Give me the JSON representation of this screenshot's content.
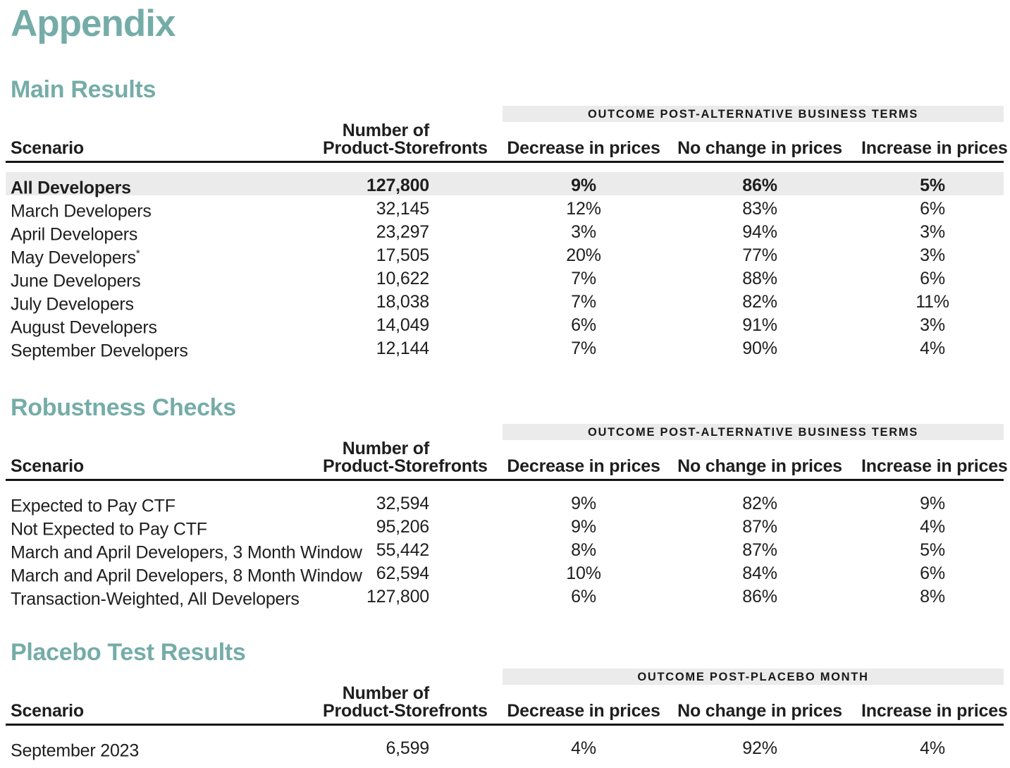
{
  "title": "Appendix",
  "colors": {
    "heading": "#75aca8",
    "band_bg": "#ebebeb",
    "highlight_bg": "#ebebeb",
    "rule": "#141414",
    "text": "#1e1e1e"
  },
  "sections": [
    {
      "heading": "Main Results",
      "band_label": "OUTCOME POST-ALTERNATIVE BUSINESS TERMS",
      "columns": {
        "scenario": "Scenario",
        "number_line1": "Number of",
        "number_line2": "Product-Storefronts",
        "outcome": [
          "Decrease in prices",
          "No change in prices",
          "Increase in prices"
        ]
      },
      "rows": [
        {
          "scenario": "All Developers",
          "storefronts": "127,800",
          "decrease": "9%",
          "no_change": "86%",
          "increase": "5%",
          "highlight": true
        },
        {
          "scenario": "March Developers",
          "storefronts": "32,145",
          "decrease": "12%",
          "no_change": "83%",
          "increase": "6%"
        },
        {
          "scenario": "April Developers",
          "storefronts": "23,297",
          "decrease": "3%",
          "no_change": "94%",
          "increase": "3%"
        },
        {
          "scenario": "May Developers",
          "sup": "*",
          "storefronts": "17,505",
          "decrease": "20%",
          "no_change": "77%",
          "increase": "3%"
        },
        {
          "scenario": "June Developers",
          "storefronts": "10,622",
          "decrease": "7%",
          "no_change": "88%",
          "increase": "6%"
        },
        {
          "scenario": "July Developers",
          "storefronts": "18,038",
          "decrease": "7%",
          "no_change": "82%",
          "increase": "11%"
        },
        {
          "scenario": "August Developers",
          "storefronts": "14,049",
          "decrease": "6%",
          "no_change": "91%",
          "increase": "3%"
        },
        {
          "scenario": "September Developers",
          "storefronts": "12,144",
          "decrease": "7%",
          "no_change": "90%",
          "increase": "4%"
        }
      ]
    },
    {
      "heading": "Robustness Checks",
      "band_label": "OUTCOME POST-ALTERNATIVE BUSINESS TERMS",
      "columns": {
        "scenario": "Scenario",
        "number_line1": "Number of",
        "number_line2": "Product-Storefronts",
        "outcome": [
          "Decrease in prices",
          "No change in prices",
          "Increase in prices"
        ]
      },
      "rows": [
        {
          "scenario": "Expected to Pay CTF",
          "storefronts": "32,594",
          "decrease": "9%",
          "no_change": "82%",
          "increase": "9%"
        },
        {
          "scenario": "Not Expected to Pay CTF",
          "storefronts": "95,206",
          "decrease": "9%",
          "no_change": "87%",
          "increase": "4%"
        },
        {
          "scenario": "March and April Developers, 3 Month Window",
          "storefronts": "55,442",
          "decrease": "8%",
          "no_change": "87%",
          "increase": "5%"
        },
        {
          "scenario": "March and April Developers, 8 Month Window",
          "storefronts": "62,594",
          "decrease": "10%",
          "no_change": "84%",
          "increase": "6%"
        },
        {
          "scenario": "Transaction-Weighted, All Developers",
          "storefronts": "127,800",
          "decrease": "6%",
          "no_change": "86%",
          "increase": "8%"
        }
      ]
    },
    {
      "heading": "Placebo Test Results",
      "band_label": "OUTCOME POST-PLACEBO MONTH",
      "columns": {
        "scenario": "Scenario",
        "number_line1": "Number of",
        "number_line2": "Product-Storefronts",
        "outcome": [
          "Decrease in prices",
          "No change in prices",
          "Increase in prices"
        ]
      },
      "rows": [
        {
          "scenario": "September 2023",
          "storefronts": "6,599",
          "decrease": "4%",
          "no_change": "92%",
          "increase": "4%"
        }
      ]
    }
  ]
}
